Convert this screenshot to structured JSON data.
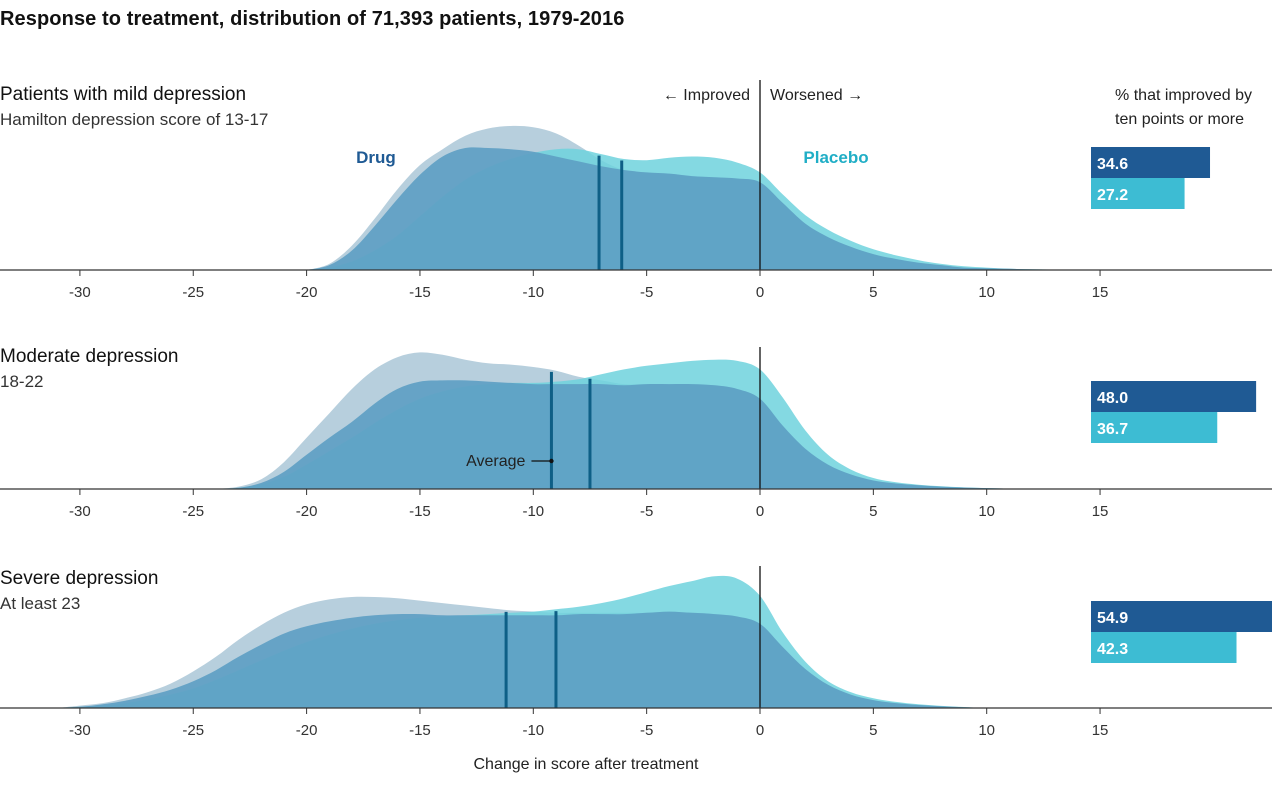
{
  "title": "Response to treatment, distribution of 71,393 patients, 1979-2016",
  "direction": {
    "improved": "← Improved",
    "worsened": "Worsened →"
  },
  "series_labels": {
    "drug": "Drug",
    "placebo": "Placebo"
  },
  "pct_header": [
    "% that improved by",
    "ten points or more"
  ],
  "average_label": "Average",
  "colors": {
    "drug": "#6aa7c8",
    "drug_fill": "#5e9fc3",
    "placebo": "#6fd2dd",
    "drug_light": "#b7cfdd",
    "drug_bar": "#1f5a94",
    "placebo_bar": "#3dbcd3",
    "avg_line": "#0e5f86"
  },
  "chart_data": {
    "type": "area",
    "xlabel": "Change in score after treatment",
    "xticks": [
      -30,
      -25,
      -20,
      -15,
      -10,
      -5,
      0,
      5,
      10,
      15
    ],
    "xlim": [
      -33.5,
      22.7
    ],
    "panels": [
      {
        "title": "Patients with mild depression",
        "subtitle": "Hamilton depression score of 13-17",
        "drug_avg": -7.1,
        "placebo_avg": -6.1,
        "pct_drug": "34.6",
        "pct_placebo": "27.2",
        "drug": {
          "x": [
            -20,
            -19,
            -18,
            -17,
            -16,
            -15,
            -14,
            -13,
            -12,
            -11,
            -10,
            -9,
            -8,
            -7,
            -6,
            -5,
            -4,
            -3,
            -2,
            -1,
            0,
            1,
            2,
            3,
            4,
            5,
            6,
            7,
            8,
            9,
            10,
            11,
            12,
            13,
            14,
            15
          ],
          "y": [
            0,
            0.04,
            0.16,
            0.36,
            0.58,
            0.78,
            0.93,
            1.0,
            1.0,
            0.99,
            0.97,
            0.93,
            0.89,
            0.85,
            0.82,
            0.8,
            0.79,
            0.77,
            0.76,
            0.75,
            0.72,
            0.55,
            0.38,
            0.27,
            0.19,
            0.13,
            0.09,
            0.06,
            0.04,
            0.02,
            0.015,
            0.01,
            0.005,
            0.003,
            0.001,
            0
          ]
        },
        "drug_light": {
          "x": [
            -20,
            -19,
            -18,
            -17,
            -16,
            -15,
            -14,
            -13,
            -12,
            -11,
            -10,
            -9,
            -8,
            -7,
            -6,
            -5,
            -4,
            -3,
            -2,
            -1,
            0,
            1,
            2,
            3,
            4,
            5,
            6,
            7,
            8,
            9,
            10,
            11,
            12,
            13,
            14,
            15
          ],
          "y": [
            0,
            0.04,
            0.16,
            0.36,
            0.58,
            0.78,
            0.93,
            1.0,
            1.0,
            0.99,
            0.97,
            0.93,
            0.89,
            0.85,
            0.82,
            0.8,
            0.79,
            0.77,
            0.76,
            0.75,
            0.72,
            0.55,
            0.38,
            0.27,
            0.19,
            0.13,
            0.09,
            0.06,
            0.04,
            0.02,
            0.015,
            0.01,
            0.005,
            0.003,
            0.001,
            0
          ]
        },
        "placebo": {
          "x": [
            -20,
            -19,
            -18,
            -17,
            -16,
            -15,
            -14,
            -13,
            -12,
            -11,
            -10,
            -9,
            -8,
            -7,
            -6,
            -5,
            -4,
            -3,
            -2,
            -1,
            0,
            1,
            2,
            3,
            4,
            5,
            6,
            7,
            8,
            9,
            10,
            11,
            12,
            13,
            14,
            15
          ],
          "y": [
            0,
            0.02,
            0.07,
            0.16,
            0.28,
            0.44,
            0.6,
            0.74,
            0.84,
            0.91,
            0.96,
            0.99,
            0.99,
            0.95,
            0.91,
            0.9,
            0.92,
            0.93,
            0.92,
            0.88,
            0.8,
            0.62,
            0.45,
            0.33,
            0.24,
            0.17,
            0.12,
            0.08,
            0.05,
            0.03,
            0.02,
            0.01,
            0.006,
            0.003,
            0.001,
            0
          ]
        },
        "light": {
          "x": [
            -20,
            -19,
            -18,
            -17,
            -16,
            -15,
            -14,
            -13,
            -12,
            -11,
            -10,
            -9,
            -8,
            -7,
            -6,
            -5,
            -4,
            -3,
            -2,
            -1,
            0,
            1,
            2,
            3,
            4,
            5,
            6,
            7,
            8,
            9,
            10,
            11,
            12,
            13,
            14,
            15
          ],
          "y": [
            0,
            0.05,
            0.2,
            0.42,
            0.66,
            0.86,
            0.99,
            1.1,
            1.16,
            1.18,
            1.17,
            1.12,
            1.02,
            0.9,
            0.82,
            0.8,
            0.79,
            0.77,
            0.76,
            0.75,
            0.72,
            0.55,
            0.38,
            0.27,
            0.19,
            0.13,
            0.09,
            0.06,
            0.04,
            0.02,
            0.015,
            0.01,
            0.005,
            0.003,
            0.001,
            0
          ]
        }
      },
      {
        "title": "Moderate depression",
        "subtitle": "18-22",
        "drug_avg": -9.2,
        "placebo_avg": -7.5,
        "pct_drug": "48.0",
        "pct_placebo": "36.7",
        "drug": {
          "x": [
            -24,
            -23,
            -22,
            -21,
            -20,
            -19,
            -18,
            -17,
            -16,
            -15,
            -14,
            -13,
            -12,
            -11,
            -10,
            -9,
            -8,
            -7,
            -6,
            -5,
            -4,
            -3,
            -2,
            -1,
            0,
            1,
            2,
            3,
            4,
            5,
            6,
            7,
            8,
            9,
            10,
            11,
            12
          ],
          "y": [
            0,
            0.01,
            0.05,
            0.14,
            0.28,
            0.42,
            0.55,
            0.7,
            0.82,
            0.88,
            0.89,
            0.89,
            0.88,
            0.87,
            0.86,
            0.86,
            0.86,
            0.86,
            0.85,
            0.86,
            0.86,
            0.86,
            0.85,
            0.82,
            0.74,
            0.52,
            0.33,
            0.2,
            0.12,
            0.07,
            0.045,
            0.03,
            0.02,
            0.012,
            0.007,
            0.003,
            0
          ]
        },
        "placebo": {
          "x": [
            -24,
            -23,
            -22,
            -21,
            -20,
            -19,
            -18,
            -17,
            -16,
            -15,
            -14,
            -13,
            -12,
            -11,
            -10,
            -9,
            -8,
            -7,
            -6,
            -5,
            -4,
            -3,
            -2,
            -1,
            0,
            1,
            2,
            3,
            4,
            5,
            6,
            7,
            8,
            9,
            10,
            11,
            12
          ],
          "y": [
            0,
            0.01,
            0.04,
            0.1,
            0.2,
            0.31,
            0.42,
            0.54,
            0.65,
            0.74,
            0.8,
            0.84,
            0.86,
            0.87,
            0.87,
            0.88,
            0.9,
            0.94,
            0.98,
            1.01,
            1.03,
            1.05,
            1.06,
            1.05,
            0.98,
            0.75,
            0.48,
            0.28,
            0.16,
            0.09,
            0.055,
            0.035,
            0.022,
            0.013,
            0.007,
            0.003,
            0
          ]
        },
        "light": {
          "x": [
            -24,
            -23,
            -22,
            -21,
            -20,
            -19,
            -18,
            -17,
            -16,
            -15,
            -14,
            -13,
            -12,
            -11,
            -10,
            -9,
            -8,
            -7,
            -6,
            -5,
            -4,
            -3,
            -2,
            -1,
            0,
            1,
            2,
            3,
            4,
            5,
            6,
            7,
            8,
            9,
            10,
            11,
            12
          ],
          "y": [
            0,
            0.02,
            0.08,
            0.22,
            0.42,
            0.62,
            0.82,
            0.98,
            1.08,
            1.12,
            1.1,
            1.06,
            1.03,
            1.02,
            1.0,
            0.97,
            0.92,
            0.89,
            0.86,
            0.86,
            0.86,
            0.86,
            0.85,
            0.82,
            0.74,
            0.52,
            0.33,
            0.2,
            0.12,
            0.07,
            0.045,
            0.03,
            0.02,
            0.012,
            0.007,
            0.003,
            0
          ]
        }
      },
      {
        "title": "Severe depression",
        "subtitle": "At least 23",
        "drug_avg": -11.2,
        "placebo_avg": -9.0,
        "pct_drug": "54.9",
        "pct_placebo": "42.3",
        "drug": {
          "x": [
            -31,
            -30,
            -29,
            -28,
            -27,
            -26,
            -25,
            -24,
            -23,
            -22,
            -21,
            -20,
            -19,
            -18,
            -17,
            -16,
            -15,
            -14,
            -13,
            -12,
            -11,
            -10,
            -9,
            -8,
            -7,
            -6,
            -5,
            -4,
            -3,
            -2,
            -1,
            0,
            1,
            2,
            3,
            4,
            5,
            6,
            7,
            8,
            9,
            10
          ],
          "y": [
            0,
            0.01,
            0.03,
            0.06,
            0.1,
            0.15,
            0.22,
            0.31,
            0.42,
            0.52,
            0.61,
            0.67,
            0.71,
            0.74,
            0.76,
            0.77,
            0.77,
            0.76,
            0.76,
            0.76,
            0.76,
            0.76,
            0.76,
            0.77,
            0.77,
            0.77,
            0.78,
            0.79,
            0.78,
            0.77,
            0.75,
            0.69,
            0.5,
            0.32,
            0.19,
            0.11,
            0.065,
            0.04,
            0.025,
            0.014,
            0.006,
            0
          ]
        },
        "placebo": {
          "x": [
            -31,
            -30,
            -29,
            -28,
            -27,
            -26,
            -25,
            -24,
            -23,
            -22,
            -21,
            -20,
            -19,
            -18,
            -17,
            -16,
            -15,
            -14,
            -13,
            -12,
            -11,
            -10,
            -9,
            -8,
            -7,
            -6,
            -5,
            -4,
            -3,
            -2,
            -1,
            0,
            1,
            2,
            3,
            4,
            5,
            6,
            7,
            8,
            9,
            10
          ],
          "y": [
            0,
            0.01,
            0.02,
            0.04,
            0.07,
            0.11,
            0.16,
            0.23,
            0.31,
            0.39,
            0.47,
            0.54,
            0.6,
            0.65,
            0.69,
            0.72,
            0.74,
            0.75,
            0.76,
            0.77,
            0.78,
            0.79,
            0.81,
            0.83,
            0.86,
            0.9,
            0.95,
            1.0,
            1.04,
            1.08,
            1.06,
            0.92,
            0.62,
            0.38,
            0.22,
            0.13,
            0.08,
            0.05,
            0.03,
            0.017,
            0.008,
            0
          ]
        },
        "light": {
          "x": [
            -31,
            -30,
            -29,
            -28,
            -27,
            -26,
            -25,
            -24,
            -23,
            -22,
            -21,
            -20,
            -19,
            -18,
            -17,
            -16,
            -15,
            -14,
            -13,
            -12,
            -11,
            -10,
            -9,
            -8,
            -7,
            -6,
            -5,
            -4,
            -3,
            -2,
            -1,
            0,
            1,
            2,
            3,
            4,
            5,
            6,
            7,
            8,
            9,
            10
          ],
          "y": [
            0,
            0.02,
            0.04,
            0.08,
            0.13,
            0.2,
            0.3,
            0.42,
            0.56,
            0.68,
            0.78,
            0.85,
            0.89,
            0.91,
            0.91,
            0.9,
            0.88,
            0.86,
            0.84,
            0.82,
            0.8,
            0.79,
            0.78,
            0.78,
            0.78,
            0.78,
            0.78,
            0.79,
            0.78,
            0.77,
            0.75,
            0.69,
            0.5,
            0.32,
            0.19,
            0.11,
            0.065,
            0.04,
            0.025,
            0.014,
            0.006,
            0
          ]
        }
      }
    ]
  }
}
